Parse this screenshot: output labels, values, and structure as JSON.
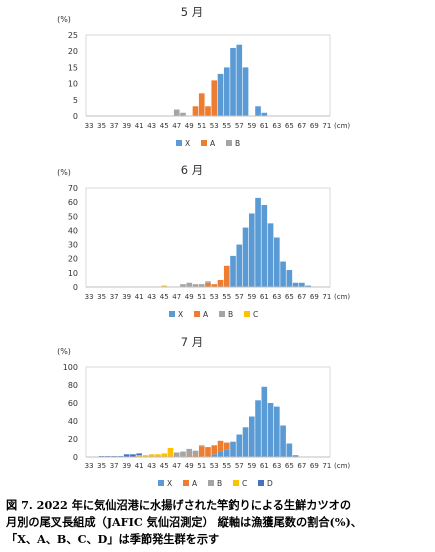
{
  "caption": {
    "line1": "図 7. 2022 年に気仙沼港に水揚げされた竿釣りによる生鮮カツオの",
    "line2": "月別の尾叉長組成（JAFIC 気仙沼測定） 縦軸は漁獲尾数の割合(%)、",
    "line3": "「X、A、B、C、D」は季節発生群を示す"
  },
  "colors": {
    "X": "#5B9BD5",
    "A": "#ED7D31",
    "B": "#A5A5A5",
    "C": "#FFC000",
    "D": "#4472C4"
  },
  "chart_data": [
    {
      "type": "bar",
      "stacked": true,
      "title": "5 月",
      "ylabel": "(%)",
      "xlabel_unit": "(cm)",
      "ylim": [
        0,
        25
      ],
      "yticks": [
        0,
        5,
        10,
        15,
        20,
        25
      ],
      "x": [
        33,
        34,
        35,
        36,
        37,
        38,
        39,
        40,
        41,
        42,
        43,
        44,
        45,
        46,
        47,
        48,
        49,
        50,
        51,
        52,
        53,
        54,
        55,
        56,
        57,
        58,
        59,
        60,
        61,
        62,
        63,
        64,
        65,
        66,
        67,
        68,
        69,
        70,
        71
      ],
      "xticks": [
        33,
        35,
        37,
        39,
        41,
        43,
        45,
        47,
        49,
        51,
        53,
        55,
        57,
        59,
        61,
        63,
        65,
        67,
        69,
        71
      ],
      "legend": [
        "X",
        "A",
        "B"
      ],
      "series": [
        {
          "name": "X",
          "values": [
            0,
            0,
            0,
            0,
            0,
            0,
            0,
            0,
            0,
            0,
            0,
            0,
            0,
            0,
            0,
            0,
            0,
            0,
            0,
            0,
            0,
            13,
            15,
            21,
            22,
            15,
            0,
            3,
            1,
            0,
            0,
            0,
            0,
            0,
            0,
            0,
            0,
            0,
            0
          ]
        },
        {
          "name": "A",
          "values": [
            0,
            0,
            0,
            0,
            0,
            0,
            0,
            0,
            0,
            0,
            0,
            0,
            0,
            0,
            0,
            0,
            0,
            3,
            7,
            3,
            11,
            0,
            0,
            0,
            0,
            0,
            0,
            0,
            0,
            0,
            0,
            0,
            0,
            0,
            0,
            0,
            0,
            0,
            0
          ]
        },
        {
          "name": "B",
          "values": [
            0,
            0,
            0,
            0,
            0,
            0,
            0,
            0,
            0,
            0,
            0,
            0,
            0,
            0,
            2,
            1,
            0,
            0,
            0,
            0,
            0,
            0,
            0,
            0,
            0,
            0,
            0,
            0,
            0,
            0,
            0,
            0,
            0,
            0,
            0,
            0,
            0,
            0,
            0
          ]
        }
      ]
    },
    {
      "type": "bar",
      "stacked": true,
      "title": "6 月",
      "ylabel": "(%)",
      "xlabel_unit": "(cm)",
      "ylim": [
        0,
        70
      ],
      "yticks": [
        0,
        10,
        20,
        30,
        40,
        50,
        60,
        70
      ],
      "x": [
        33,
        34,
        35,
        36,
        37,
        38,
        39,
        40,
        41,
        42,
        43,
        44,
        45,
        46,
        47,
        48,
        49,
        50,
        51,
        52,
        53,
        54,
        55,
        56,
        57,
        58,
        59,
        60,
        61,
        62,
        63,
        64,
        65,
        66,
        67,
        68,
        69,
        70,
        71
      ],
      "xticks": [
        33,
        35,
        37,
        39,
        41,
        43,
        45,
        47,
        49,
        51,
        53,
        55,
        57,
        59,
        61,
        63,
        65,
        67,
        69,
        71
      ],
      "legend": [
        "X",
        "A",
        "B",
        "C"
      ],
      "series": [
        {
          "name": "X",
          "values": [
            0,
            0,
            0,
            0,
            0,
            0,
            0,
            0,
            0,
            0,
            0,
            0,
            0,
            0,
            0,
            0,
            0,
            0,
            0,
            0,
            0,
            0,
            0,
            22,
            30,
            42,
            52,
            63,
            58,
            45,
            35,
            18,
            12,
            3,
            3,
            1,
            0,
            0,
            0
          ]
        },
        {
          "name": "A",
          "values": [
            0,
            0,
            0,
            0,
            0,
            0,
            0,
            0,
            0,
            0,
            0,
            0,
            0,
            0,
            0,
            0,
            0,
            0,
            0,
            3,
            2,
            5,
            15,
            0,
            0,
            0,
            0,
            0,
            0,
            0,
            0,
            0,
            0,
            0,
            0,
            0,
            0,
            0,
            0
          ]
        },
        {
          "name": "B",
          "values": [
            0,
            0,
            0,
            0,
            0,
            0,
            0,
            0,
            0,
            0,
            0,
            0,
            0,
            0,
            0,
            2,
            3,
            2,
            2,
            1,
            0,
            0,
            0,
            0,
            0,
            0,
            0,
            0,
            0,
            0,
            0,
            0,
            0,
            0,
            0,
            0,
            0,
            0,
            0
          ]
        },
        {
          "name": "C",
          "values": [
            0,
            0,
            0,
            0,
            0,
            0,
            0,
            0,
            0,
            0,
            0,
            0,
            1,
            0,
            0,
            0,
            0,
            0,
            0,
            0,
            0,
            0,
            0,
            0,
            0,
            0,
            0,
            0,
            0,
            0,
            0,
            0,
            0,
            0,
            0,
            0,
            0,
            0,
            0
          ]
        }
      ]
    },
    {
      "type": "bar",
      "stacked": true,
      "title": "7 月",
      "ylabel": "(%)",
      "xlabel_unit": "(cm)",
      "ylim": [
        0,
        100
      ],
      "yticks": [
        0,
        20,
        40,
        60,
        80,
        100
      ],
      "x": [
        33,
        34,
        35,
        36,
        37,
        38,
        39,
        40,
        41,
        42,
        43,
        44,
        45,
        46,
        47,
        48,
        49,
        50,
        51,
        52,
        53,
        54,
        55,
        56,
        57,
        58,
        59,
        60,
        61,
        62,
        63,
        64,
        65,
        66,
        67,
        68,
        69,
        70,
        71
      ],
      "xticks": [
        33,
        35,
        37,
        39,
        41,
        43,
        45,
        47,
        49,
        51,
        53,
        55,
        57,
        59,
        61,
        63,
        65,
        67,
        69,
        71
      ],
      "legend": [
        "X",
        "A",
        "B",
        "C",
        "D"
      ],
      "series": [
        {
          "name": "X",
          "values": [
            0,
            0,
            0,
            0,
            0,
            0,
            0,
            0,
            0,
            0,
            0,
            0,
            0,
            0,
            0,
            0,
            0,
            0,
            0,
            0,
            0,
            0,
            0,
            0,
            0,
            0,
            0,
            0,
            0,
            0,
            0,
            0,
            0,
            0,
            0,
            0,
            0,
            0,
            0
          ]
        },
        {
          "name": "A",
          "values": [
            0,
            0,
            0,
            0,
            0,
            0,
            0,
            0,
            0,
            0,
            0,
            0,
            0,
            0,
            0,
            0,
            0,
            0,
            0,
            0,
            0,
            0,
            0,
            0,
            0,
            0,
            0,
            0,
            0,
            0,
            0,
            0,
            0,
            0,
            0,
            0,
            0,
            0,
            0
          ]
        },
        {
          "name": "B",
          "values": [
            0,
            0,
            0,
            0,
            0,
            0,
            0,
            0,
            0,
            0,
            0,
            0,
            0,
            0,
            0,
            0,
            0,
            0,
            0,
            0,
            0,
            0,
            0,
            0,
            0,
            0,
            0,
            0,
            0,
            0,
            0,
            0,
            0,
            0,
            0,
            0,
            0,
            0,
            0
          ]
        },
        {
          "name": "C",
          "values": [
            0,
            0,
            0,
            0,
            0,
            0,
            0,
            0,
            0,
            0,
            0,
            0,
            0,
            0,
            0,
            0,
            0,
            0,
            0,
            0,
            0,
            0,
            0,
            0,
            0,
            0,
            0,
            0,
            0,
            0,
            0,
            0,
            0,
            0,
            0,
            0,
            0,
            0,
            0
          ]
        },
        {
          "name": "D",
          "values": [
            0,
            0,
            0,
            0,
            0,
            0,
            0,
            0,
            0,
            0,
            0,
            0,
            0,
            0,
            0,
            0,
            0,
            0,
            0,
            0,
            0,
            0,
            0,
            0,
            0,
            0,
            0,
            0,
            0,
            0,
            0,
            0,
            0,
            0,
            0,
            0,
            0,
            0,
            0
          ]
        }
      ]
    }
  ]
}
